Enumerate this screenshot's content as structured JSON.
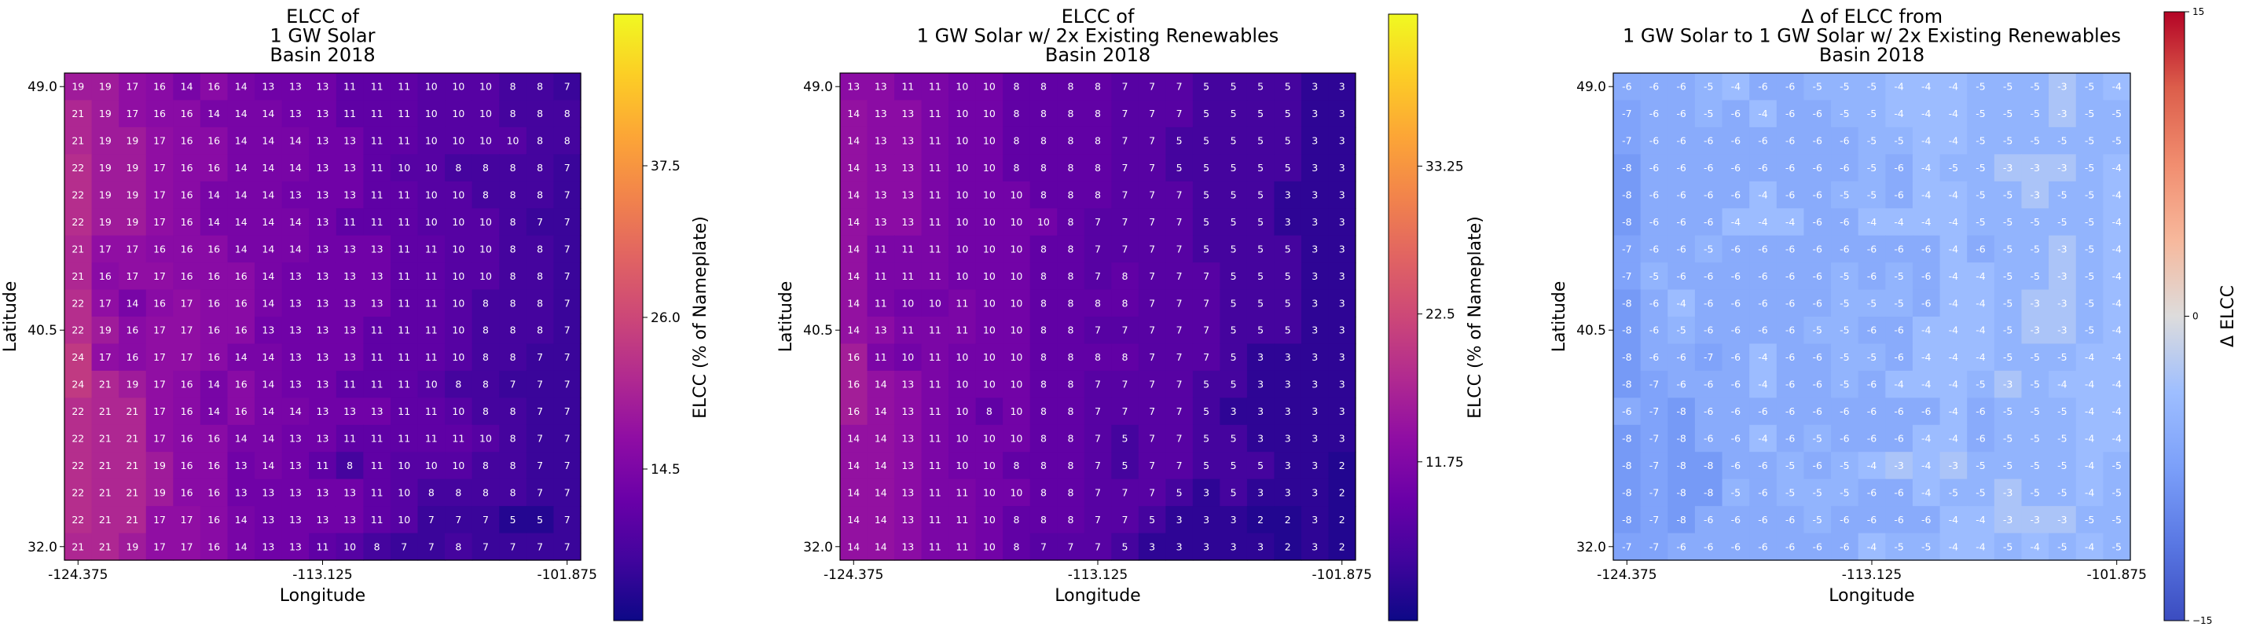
{
  "chart_data": [
    {
      "type": "heatmap",
      "title": "ELCC of\n1 GW Solar\nBasin 2018",
      "xlabel": "Longitude",
      "ylabel": "Latitude",
      "xticks": [
        "-124.375",
        "-113.125",
        "-101.875"
      ],
      "yticks": [
        "49.0",
        "40.5",
        "32.0"
      ],
      "colorbar": {
        "label": "ELCC (% of Nameplate)",
        "colormap": "plasma",
        "range": [
          3,
          49
        ],
        "ticks": [
          "14.5",
          "26.0",
          "37.5"
        ],
        "tick_values": [
          14.5,
          26.0,
          37.5
        ]
      },
      "rows": [
        [
          19,
          19,
          17,
          16,
          14,
          16,
          14,
          13,
          13,
          13,
          11,
          11,
          11,
          10,
          10,
          10,
          8,
          8,
          7
        ],
        [
          21,
          19,
          17,
          16,
          16,
          14,
          14,
          14,
          13,
          13,
          11,
          11,
          11,
          10,
          10,
          10,
          8,
          8,
          8
        ],
        [
          21,
          19,
          19,
          17,
          16,
          16,
          14,
          14,
          14,
          13,
          13,
          11,
          11,
          10,
          10,
          10,
          10,
          8,
          8
        ],
        [
          22,
          19,
          19,
          17,
          16,
          16,
          14,
          14,
          14,
          13,
          13,
          11,
          10,
          10,
          8,
          8,
          8,
          8,
          7
        ],
        [
          22,
          19,
          19,
          17,
          16,
          14,
          14,
          14,
          13,
          13,
          13,
          11,
          11,
          10,
          10,
          8,
          8,
          8,
          7
        ],
        [
          22,
          19,
          19,
          17,
          16,
          14,
          14,
          14,
          14,
          13,
          11,
          11,
          11,
          10,
          10,
          10,
          8,
          7,
          7
        ],
        [
          21,
          17,
          17,
          16,
          16,
          16,
          14,
          14,
          14,
          13,
          13,
          13,
          11,
          11,
          10,
          10,
          8,
          8,
          7
        ],
        [
          21,
          16,
          17,
          17,
          16,
          16,
          16,
          14,
          13,
          13,
          13,
          13,
          11,
          11,
          10,
          10,
          8,
          8,
          7
        ],
        [
          22,
          17,
          14,
          16,
          17,
          16,
          16,
          14,
          13,
          13,
          13,
          13,
          11,
          11,
          10,
          8,
          8,
          8,
          7
        ],
        [
          22,
          19,
          16,
          17,
          17,
          16,
          16,
          13,
          13,
          13,
          13,
          11,
          11,
          11,
          10,
          8,
          8,
          8,
          7
        ],
        [
          24,
          17,
          16,
          17,
          17,
          16,
          14,
          14,
          13,
          13,
          13,
          11,
          11,
          11,
          10,
          8,
          8,
          7,
          7
        ],
        [
          24,
          21,
          19,
          17,
          16,
          14,
          16,
          14,
          13,
          13,
          11,
          11,
          11,
          10,
          8,
          8,
          7,
          7,
          7
        ],
        [
          22,
          21,
          21,
          17,
          16,
          14,
          16,
          14,
          14,
          13,
          13,
          13,
          11,
          11,
          10,
          8,
          8,
          7,
          7
        ],
        [
          22,
          21,
          21,
          17,
          16,
          16,
          14,
          14,
          13,
          13,
          11,
          11,
          11,
          11,
          11,
          10,
          8,
          7,
          7
        ],
        [
          22,
          21,
          21,
          19,
          16,
          16,
          13,
          14,
          13,
          11,
          8,
          11,
          10,
          10,
          10,
          8,
          8,
          7,
          7
        ],
        [
          22,
          21,
          21,
          19,
          16,
          16,
          13,
          13,
          13,
          13,
          13,
          11,
          10,
          8,
          8,
          8,
          8,
          7,
          7
        ],
        [
          22,
          21,
          21,
          17,
          17,
          16,
          14,
          13,
          13,
          13,
          13,
          11,
          10,
          7,
          7,
          7,
          5,
          5,
          7
        ],
        [
          21,
          21,
          19,
          17,
          17,
          16,
          14,
          13,
          13,
          11,
          10,
          8,
          7,
          7,
          8,
          7,
          7,
          7,
          7
        ]
      ]
    },
    {
      "type": "heatmap",
      "title": "ELCC of\n1 GW Solar w/ 2x Existing Renewables\nBasin 2018",
      "xlabel": "Longitude",
      "ylabel": "Latitude",
      "xticks": [
        "-124.375",
        "-113.125",
        "-101.875"
      ],
      "yticks": [
        "49.0",
        "40.5",
        "32.0"
      ],
      "colorbar": {
        "label": "ELCC (% of Nameplate)",
        "colormap": "plasma",
        "range": [
          0.2,
          44.3
        ],
        "ticks": [
          "11.75",
          "22.5",
          "33.25"
        ],
        "tick_values": [
          11.75,
          22.5,
          33.25
        ]
      },
      "rows": [
        [
          13,
          13,
          11,
          11,
          10,
          10,
          8,
          8,
          8,
          8,
          7,
          7,
          7,
          5,
          5,
          5,
          5,
          3,
          3
        ],
        [
          14,
          13,
          13,
          11,
          10,
          10,
          8,
          8,
          8,
          8,
          7,
          7,
          7,
          5,
          5,
          5,
          5,
          3,
          3
        ],
        [
          14,
          13,
          13,
          11,
          10,
          10,
          8,
          8,
          8,
          8,
          7,
          7,
          5,
          5,
          5,
          5,
          5,
          3,
          3
        ],
        [
          14,
          13,
          13,
          11,
          10,
          10,
          8,
          8,
          8,
          8,
          7,
          7,
          5,
          5,
          5,
          5,
          5,
          3,
          3
        ],
        [
          14,
          13,
          13,
          11,
          10,
          10,
          10,
          8,
          8,
          8,
          7,
          7,
          7,
          5,
          5,
          5,
          3,
          3,
          3
        ],
        [
          14,
          13,
          13,
          11,
          10,
          10,
          10,
          10,
          8,
          7,
          7,
          7,
          7,
          5,
          5,
          5,
          3,
          3,
          3
        ],
        [
          14,
          11,
          11,
          11,
          10,
          10,
          10,
          8,
          8,
          7,
          7,
          7,
          7,
          5,
          5,
          5,
          5,
          3,
          3
        ],
        [
          14,
          11,
          11,
          11,
          10,
          10,
          10,
          8,
          8,
          7,
          8,
          7,
          7,
          7,
          5,
          5,
          5,
          3,
          3
        ],
        [
          14,
          11,
          10,
          10,
          11,
          10,
          10,
          8,
          8,
          8,
          8,
          7,
          7,
          7,
          5,
          5,
          5,
          3,
          3
        ],
        [
          14,
          13,
          11,
          11,
          11,
          10,
          10,
          8,
          8,
          7,
          7,
          7,
          7,
          7,
          5,
          5,
          5,
          3,
          3
        ],
        [
          16,
          11,
          10,
          11,
          10,
          10,
          10,
          8,
          8,
          8,
          8,
          7,
          7,
          7,
          5,
          3,
          3,
          3,
          3
        ],
        [
          16,
          14,
          13,
          11,
          10,
          10,
          10,
          8,
          8,
          7,
          7,
          7,
          7,
          5,
          5,
          3,
          3,
          3,
          3
        ],
        [
          16,
          14,
          13,
          11,
          10,
          8,
          10,
          8,
          8,
          7,
          7,
          7,
          7,
          5,
          3,
          3,
          3,
          3,
          3
        ],
        [
          14,
          14,
          13,
          11,
          10,
          10,
          10,
          8,
          8,
          7,
          5,
          7,
          7,
          5,
          5,
          3,
          3,
          3,
          3
        ],
        [
          14,
          14,
          13,
          11,
          10,
          10,
          8,
          8,
          8,
          7,
          5,
          7,
          7,
          5,
          5,
          5,
          3,
          3,
          2
        ],
        [
          14,
          14,
          13,
          11,
          11,
          10,
          10,
          8,
          8,
          7,
          7,
          7,
          5,
          3,
          5,
          3,
          3,
          3,
          2
        ],
        [
          14,
          14,
          13,
          11,
          11,
          10,
          8,
          8,
          8,
          7,
          7,
          5,
          3,
          3,
          3,
          2,
          2,
          3,
          2
        ],
        [
          14,
          14,
          13,
          11,
          11,
          10,
          8,
          7,
          7,
          7,
          5,
          3,
          3,
          3,
          3,
          3,
          2,
          3,
          2
        ]
      ]
    },
    {
      "type": "heatmap",
      "title": "Δ of ELCC from\n1 GW Solar to 1 GW Solar w/ 2x Existing Renewables\nBasin 2018",
      "xlabel": "Longitude",
      "ylabel": "Latitude",
      "xticks": [
        "-124.375",
        "-113.125",
        "-101.875"
      ],
      "yticks": [
        "49.0",
        "40.5",
        "32.0"
      ],
      "colorbar": {
        "label": "Δ ELCC",
        "colormap": "coolwarm",
        "range": [
          -15,
          15
        ],
        "ticks": [
          "−15",
          "0",
          "15"
        ],
        "tick_values": [
          -15,
          0,
          15
        ]
      },
      "rows": [
        [
          -6,
          -6,
          -6,
          -5,
          -4,
          -6,
          -6,
          -5,
          -5,
          -5,
          -4,
          -4,
          -4,
          -5,
          -5,
          -5,
          -3,
          -5,
          -4
        ],
        [
          -7,
          -6,
          -6,
          -5,
          -6,
          -4,
          -6,
          -6,
          -5,
          -5,
          -4,
          -4,
          -4,
          -5,
          -5,
          -5,
          -3,
          -5,
          -5
        ],
        [
          -7,
          -6,
          -6,
          -6,
          -6,
          -6,
          -6,
          -6,
          -6,
          -5,
          -5,
          -4,
          -4,
          -5,
          -5,
          -5,
          -5,
          -5,
          -5
        ],
        [
          -8,
          -6,
          -6,
          -6,
          -6,
          -6,
          -6,
          -6,
          -6,
          -5,
          -6,
          -4,
          -5,
          -5,
          -3,
          -3,
          -3,
          -5,
          -4
        ],
        [
          -8,
          -6,
          -6,
          -6,
          -6,
          -4,
          -6,
          -6,
          -5,
          -5,
          -6,
          -4,
          -4,
          -5,
          -5,
          -3,
          -5,
          -5,
          -4
        ],
        [
          -8,
          -6,
          -6,
          -6,
          -4,
          -4,
          -4,
          -6,
          -6,
          -4,
          -4,
          -4,
          -4,
          -5,
          -5,
          -5,
          -5,
          -5,
          -4
        ],
        [
          -7,
          -6,
          -6,
          -5,
          -6,
          -6,
          -6,
          -6,
          -6,
          -6,
          -6,
          -6,
          -4,
          -6,
          -5,
          -5,
          -3,
          -5,
          -4
        ],
        [
          -7,
          -5,
          -6,
          -6,
          -6,
          -6,
          -6,
          -6,
          -5,
          -6,
          -5,
          -6,
          -4,
          -4,
          -5,
          -5,
          -3,
          -5,
          -4
        ],
        [
          -8,
          -6,
          -4,
          -6,
          -6,
          -6,
          -6,
          -6,
          -5,
          -5,
          -5,
          -6,
          -4,
          -4,
          -5,
          -3,
          -3,
          -5,
          -4
        ],
        [
          -8,
          -6,
          -5,
          -6,
          -6,
          -6,
          -6,
          -5,
          -5,
          -6,
          -6,
          -4,
          -4,
          -4,
          -5,
          -3,
          -3,
          -5,
          -4
        ],
        [
          -8,
          -6,
          -6,
          -7,
          -6,
          -4,
          -6,
          -6,
          -5,
          -5,
          -6,
          -4,
          -4,
          -4,
          -5,
          -5,
          -5,
          -4,
          -4
        ],
        [
          -8,
          -7,
          -6,
          -6,
          -6,
          -4,
          -6,
          -6,
          -5,
          -6,
          -4,
          -4,
          -4,
          -5,
          -3,
          -5,
          -4,
          -4,
          -4
        ],
        [
          -6,
          -7,
          -8,
          -6,
          -6,
          -6,
          -6,
          -6,
          -6,
          -6,
          -6,
          -6,
          -4,
          -6,
          -5,
          -5,
          -5,
          -4,
          -4
        ],
        [
          -8,
          -7,
          -8,
          -6,
          -6,
          -4,
          -6,
          -5,
          -6,
          -6,
          -6,
          -4,
          -4,
          -6,
          -5,
          -5,
          -5,
          -4,
          -4
        ],
        [
          -8,
          -7,
          -8,
          -8,
          -6,
          -6,
          -5,
          -6,
          -5,
          -4,
          -3,
          -4,
          -3,
          -5,
          -5,
          -5,
          -5,
          -4,
          -5
        ],
        [
          -8,
          -7,
          -8,
          -8,
          -5,
          -6,
          -5,
          -5,
          -5,
          -6,
          -6,
          -4,
          -5,
          -5,
          -3,
          -5,
          -5,
          -4,
          -5
        ],
        [
          -8,
          -7,
          -8,
          -6,
          -6,
          -6,
          -6,
          -5,
          -6,
          -6,
          -6,
          -6,
          -4,
          -4,
          -3,
          -3,
          -3,
          -5,
          -5
        ],
        [
          -7,
          -7,
          -6,
          -6,
          -6,
          -6,
          -6,
          -6,
          -6,
          -4,
          -5,
          -5,
          -4,
          -4,
          -5,
          -4,
          -5,
          -4,
          -5
        ]
      ]
    }
  ]
}
